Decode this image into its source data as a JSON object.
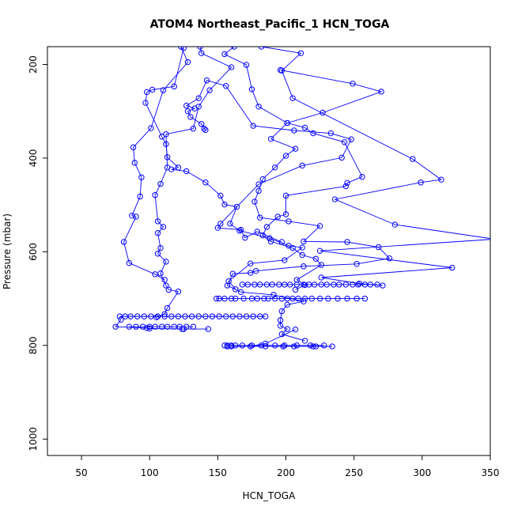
{
  "chart_data": {
    "type": "line",
    "title": "ATOM4 Northeast_Pacific_1 HCN_TOGA",
    "xlabel": "HCN_TOGA",
    "ylabel": "Pressure (mbar)",
    "xlim": [
      25,
      350
    ],
    "ylim": [
      1035,
      162
    ],
    "y_reversed": true,
    "x_ticks": [
      50,
      100,
      150,
      200,
      250,
      300,
      350
    ],
    "y_ticks": [
      200,
      400,
      600,
      800,
      1000
    ],
    "grid": false,
    "line_color": "#0000ff",
    "marker": "open-circle",
    "segments": [
      {
        "name": "profile-1",
        "points": [
          [
            182,
            162
          ],
          [
            211,
            176
          ],
          [
            197,
            213
          ],
          [
            205,
            272
          ],
          [
            293,
            402
          ],
          [
            314,
            446
          ],
          [
            299,
            452
          ],
          [
            236,
            488
          ],
          [
            280,
            542
          ],
          [
            353,
            573
          ],
          [
            225,
            598
          ],
          [
            322,
            634
          ],
          [
            226,
            655
          ],
          [
            254,
            668
          ],
          [
            271,
            672
          ]
        ]
      },
      {
        "name": "profile-2",
        "points": [
          [
            123,
            162
          ],
          [
            128,
            195
          ],
          [
            110,
            255
          ],
          [
            101,
            336
          ],
          [
            88,
            377
          ],
          [
            89,
            410
          ],
          [
            94,
            441
          ],
          [
            93,
            482
          ],
          [
            87,
            523
          ],
          [
            90,
            525
          ],
          [
            81,
            579
          ],
          [
            85,
            624
          ],
          [
            104,
            648
          ],
          [
            111,
            660
          ]
        ]
      },
      {
        "name": "profile-3",
        "points": [
          [
            137,
            162
          ],
          [
            138,
            176
          ],
          [
            160,
            206
          ],
          [
            144,
            255
          ],
          [
            136,
            290
          ],
          [
            132,
            337
          ],
          [
            112,
            349
          ],
          [
            113,
            420
          ],
          [
            108,
            455
          ],
          [
            104,
            479
          ],
          [
            106,
            535
          ],
          [
            110,
            547
          ],
          [
            106,
            560
          ],
          [
            108,
            592
          ],
          [
            106,
            604
          ],
          [
            112,
            621
          ],
          [
            108,
            646
          ],
          [
            112,
            672
          ],
          [
            114,
            681
          ],
          [
            121,
            685
          ],
          [
            113,
            720
          ],
          [
            111,
            733
          ],
          [
            105,
            740
          ]
        ]
      },
      {
        "name": "profile-4",
        "points": [
          [
            162,
            162
          ],
          [
            155,
            178
          ],
          [
            171,
            201
          ],
          [
            175,
            253
          ],
          [
            180,
            290
          ],
          [
            201,
            325
          ],
          [
            214,
            335
          ],
          [
            220,
            347
          ],
          [
            243,
            366
          ],
          [
            256,
            440
          ],
          [
            245,
            453
          ],
          [
            244,
            460
          ],
          [
            200,
            480
          ],
          [
            200,
            520
          ],
          [
            194,
            525
          ],
          [
            186,
            547
          ],
          [
            183,
            565
          ],
          [
            189,
            578
          ],
          [
            205,
            592
          ],
          [
            212,
            607
          ],
          [
            222,
            615
          ],
          [
            226,
            628
          ],
          [
            208,
            660
          ],
          [
            214,
            671
          ],
          [
            207,
            681
          ]
        ]
      },
      {
        "name": "profile-5",
        "points": [
          [
            125,
            165
          ],
          [
            118,
            247
          ],
          [
            102,
            254
          ],
          [
            98,
            259
          ],
          [
            97,
            282
          ],
          [
            109,
            354
          ],
          [
            112,
            370
          ],
          [
            113,
            398
          ],
          [
            121,
            420
          ],
          [
            116,
            424
          ],
          [
            127,
            428
          ],
          [
            141,
            452
          ],
          [
            152,
            480
          ],
          [
            155,
            499
          ],
          [
            164,
            504
          ],
          [
            159,
            540
          ],
          [
            166,
            555
          ],
          [
            188,
            571
          ],
          [
            202,
            587
          ],
          [
            212,
            591
          ],
          [
            199,
            618
          ],
          [
            174,
            625
          ],
          [
            158,
            663
          ],
          [
            163,
            680
          ]
        ]
      },
      {
        "name": "profile-6",
        "points": [
          [
            140,
            337
          ],
          [
            141,
            340
          ],
          [
            138,
            327
          ],
          [
            130,
            312
          ],
          [
            128,
            300
          ],
          [
            133,
            294
          ],
          [
            127,
            288
          ],
          [
            136,
            272
          ],
          [
            142,
            234
          ],
          [
            156,
            246
          ],
          [
            176,
            331
          ],
          [
            206,
            341
          ],
          [
            233,
            347
          ],
          [
            248,
            360
          ],
          [
            241,
            399
          ],
          [
            212,
            416
          ],
          [
            180,
            456
          ],
          [
            152,
            540
          ],
          [
            150,
            549
          ],
          [
            167,
            553
          ],
          [
            170,
            570
          ],
          [
            179,
            557
          ],
          [
            197,
            579
          ]
        ]
      },
      {
        "name": "profile-7",
        "points": [
          [
            196,
            212
          ],
          [
            249,
            241
          ],
          [
            270,
            258
          ],
          [
            227,
            303
          ],
          [
            201,
            325
          ],
          [
            189,
            359
          ],
          [
            207,
            380
          ],
          [
            200,
            395
          ],
          [
            192,
            420
          ],
          [
            183,
            445
          ],
          [
            180,
            470
          ],
          [
            177,
            493
          ],
          [
            181,
            527
          ],
          [
            202,
            535
          ],
          [
            225,
            545
          ],
          [
            213,
            578
          ],
          [
            245,
            579
          ],
          [
            268,
            590
          ],
          [
            276,
            614
          ],
          [
            252,
            626
          ],
          [
            213,
            631
          ],
          [
            178,
            641
          ],
          [
            174,
            645
          ],
          [
            161,
            647
          ],
          [
            157,
            672
          ],
          [
            167,
            686
          ],
          [
            191,
            692
          ],
          [
            213,
            706
          ],
          [
            201,
            713
          ],
          [
            197,
            727
          ],
          [
            196,
            746
          ],
          [
            196,
            758
          ],
          [
            201,
            765
          ],
          [
            197,
            776
          ],
          [
            214,
            790
          ]
        ]
      },
      {
        "name": "profile-8",
        "points": [
          [
            79,
            745
          ],
          [
            75,
            760
          ],
          [
            98,
            763
          ],
          [
            100,
            764
          ],
          [
            125,
            765
          ],
          [
            143,
            765
          ],
          [
            124,
            765
          ]
        ]
      },
      {
        "name": "profile-9",
        "points": [
          [
            207,
            766
          ],
          [
            185,
            796
          ],
          [
            174,
            802
          ],
          [
            160,
            802
          ],
          [
            157,
            802
          ],
          [
            206,
            802
          ],
          [
            234,
            802
          ],
          [
            222,
            802
          ],
          [
            220,
            802
          ],
          [
            198,
            802
          ],
          [
            185,
            802
          ]
        ]
      }
    ],
    "point_clusters": [
      {
        "name": "row-700",
        "y": 700,
        "x": [
          149,
          151,
          155,
          160,
          163,
          169,
          175,
          179,
          184,
          187,
          192,
          197,
          201,
          205,
          209,
          214,
          219,
          225,
          231,
          238,
          245,
          252,
          258
        ]
      },
      {
        "name": "row-670",
        "y": 670,
        "x": [
          168,
          172,
          177,
          181,
          186,
          190,
          195,
          199,
          203,
          208,
          213,
          217,
          221,
          226,
          230,
          235,
          239,
          244,
          249,
          253,
          258,
          262,
          267
        ]
      },
      {
        "name": "row-738",
        "y": 738,
        "x": [
          78,
          82,
          86,
          91,
          96,
          101,
          106,
          111,
          116,
          121,
          126,
          131,
          136,
          141,
          146,
          151,
          156,
          161,
          166,
          171,
          176,
          181,
          185
        ]
      },
      {
        "name": "row-760",
        "y": 760,
        "x": [
          85,
          90,
          95,
          100,
          104,
          109,
          113,
          118,
          122,
          127,
          132
        ]
      },
      {
        "name": "row-800",
        "y": 800,
        "x": [
          155,
          157,
          160,
          163,
          168,
          175,
          182,
          192,
          199,
          208,
          218,
          228
        ]
      }
    ]
  }
}
